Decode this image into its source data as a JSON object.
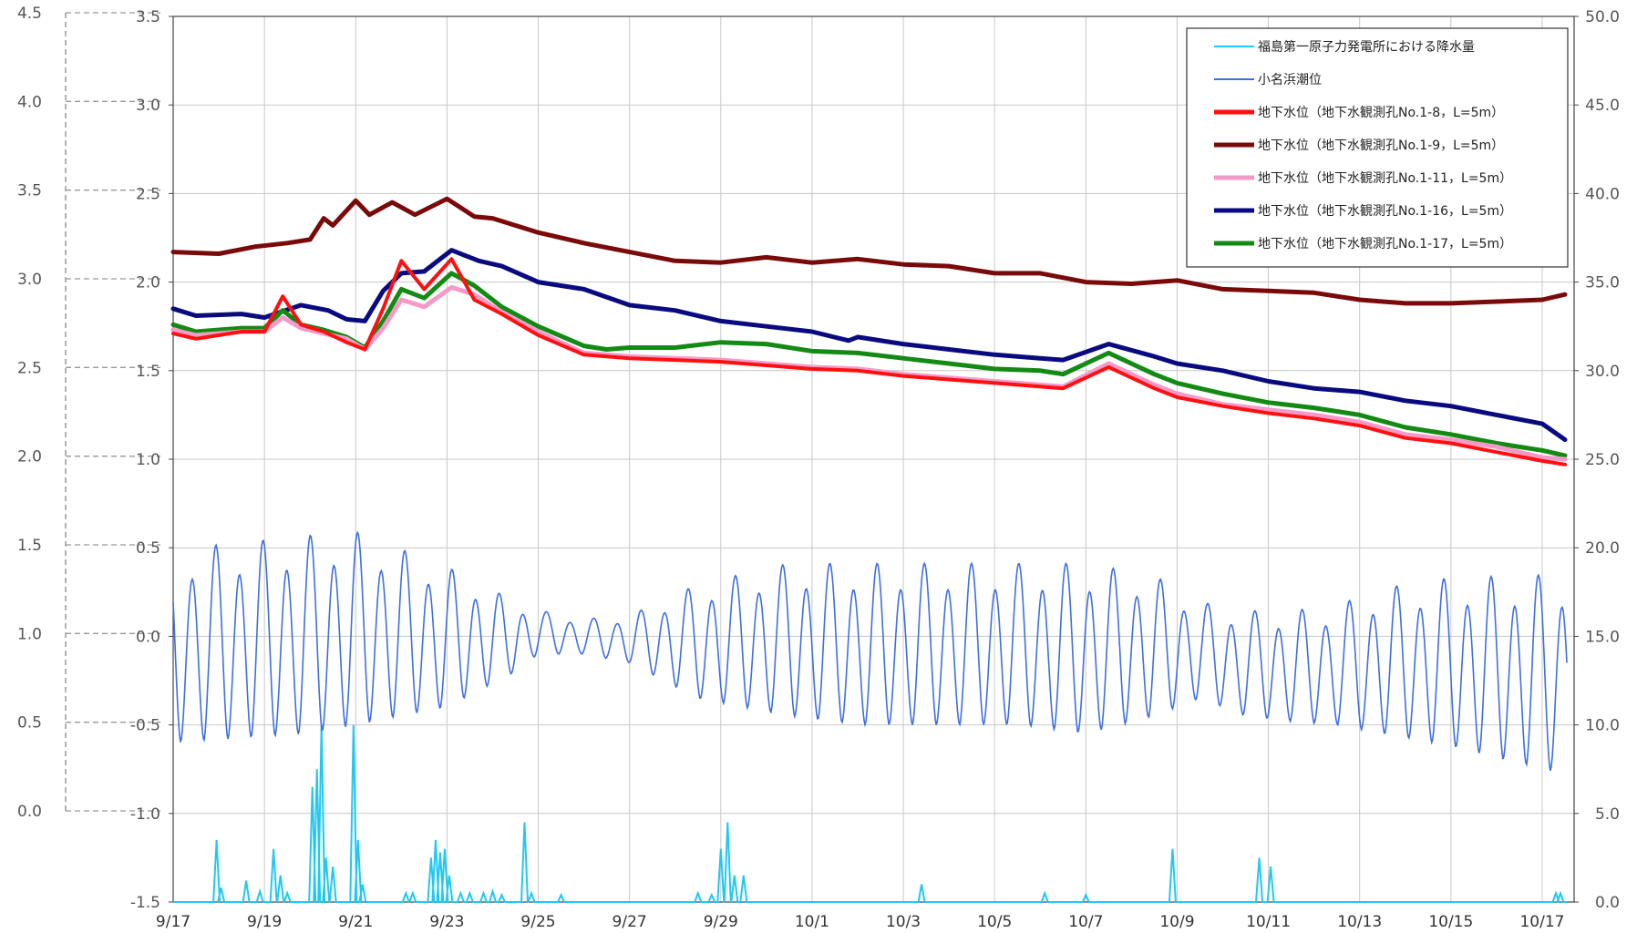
{
  "chart_data": {
    "type": "line",
    "x_axis": {
      "ticks": [
        "9/17",
        "9/19",
        "9/21",
        "9/23",
        "9/25",
        "9/27",
        "9/29",
        "10/1",
        "10/3",
        "10/5",
        "10/7",
        "10/9",
        "10/11",
        "10/13",
        "10/15",
        "10/17"
      ],
      "range_days": [
        0,
        30.7
      ]
    },
    "y_axis_outer_left": {
      "ticks": [
        "4.5",
        "4.0",
        "3.5",
        "3.0",
        "2.5",
        "2.0",
        "1.5",
        "1.0",
        "0.5",
        "0.0"
      ],
      "range": [
        0.0,
        4.5
      ]
    },
    "y_axis_inner_left": {
      "ticks": [
        "3.5",
        "3.0",
        "2.5",
        "2.0",
        "1.5",
        "1.0",
        "0.5",
        "0.0",
        "-0.5",
        "-1.0",
        "-1.5"
      ],
      "range": [
        -1.5,
        3.5
      ]
    },
    "y_axis_right": {
      "ticks": [
        "50.0",
        "45.0",
        "40.0",
        "35.0",
        "30.0",
        "25.0",
        "20.0",
        "15.0",
        "10.0",
        "5.0",
        "0.0"
      ],
      "range": [
        0.0,
        50.0
      ]
    },
    "grid": true,
    "legend_position": "top-right",
    "legend": [
      {
        "label": "福島第一原子力発電所における降水量",
        "color": "#22c8f0"
      },
      {
        "label": "小名浜潮位",
        "color": "#3e6fe0"
      },
      {
        "label": "地下水位（地下水観測孔No.1-8，L=5m）",
        "color": "#ff1010"
      },
      {
        "label": "地下水位（地下水観測孔No.1-9，L=5m）",
        "color": "#7a0a0a"
      },
      {
        "label": "地下水位（地下水観測孔No.1-11，L=5m）",
        "color": "#f59ac8"
      },
      {
        "label": "地下水位（地下水観測孔No.1-16，L=5m）",
        "color": "#0a0a80"
      },
      {
        "label": "地下水位（地下水観測孔No.1-17，L=5m）",
        "color": "#138a13"
      }
    ],
    "series": [
      {
        "key": "w9",
        "color": "#7a0a0a",
        "width": 5,
        "axis": "inner_left",
        "points": [
          [
            0,
            2.17
          ],
          [
            1,
            2.16
          ],
          [
            1.8,
            2.2
          ],
          [
            2.5,
            2.22
          ],
          [
            3,
            2.24
          ],
          [
            3.3,
            2.36
          ],
          [
            3.5,
            2.32
          ],
          [
            4,
            2.46
          ],
          [
            4.3,
            2.38
          ],
          [
            4.8,
            2.45
          ],
          [
            5.3,
            2.38
          ],
          [
            6,
            2.47
          ],
          [
            6.6,
            2.37
          ],
          [
            7,
            2.36
          ],
          [
            8,
            2.28
          ],
          [
            9,
            2.22
          ],
          [
            10,
            2.17
          ],
          [
            11,
            2.12
          ],
          [
            12,
            2.11
          ],
          [
            13,
            2.14
          ],
          [
            14,
            2.11
          ],
          [
            15,
            2.13
          ],
          [
            16,
            2.1
          ],
          [
            17,
            2.09
          ],
          [
            18,
            2.05
          ],
          [
            19,
            2.05
          ],
          [
            20,
            2.0
          ],
          [
            21,
            1.99
          ],
          [
            22,
            2.01
          ],
          [
            23,
            1.96
          ],
          [
            24,
            1.95
          ],
          [
            25,
            1.94
          ],
          [
            26,
            1.9
          ],
          [
            27,
            1.88
          ],
          [
            28,
            1.88
          ],
          [
            29,
            1.89
          ],
          [
            30,
            1.9
          ],
          [
            30.5,
            1.93
          ]
        ]
      },
      {
        "key": "w16",
        "color": "#0a0a80",
        "width": 5,
        "axis": "inner_left",
        "points": [
          [
            0,
            1.85
          ],
          [
            0.5,
            1.81
          ],
          [
            1.5,
            1.82
          ],
          [
            2,
            1.8
          ],
          [
            2.8,
            1.87
          ],
          [
            3.4,
            1.84
          ],
          [
            3.8,
            1.79
          ],
          [
            4.2,
            1.78
          ],
          [
            4.6,
            1.95
          ],
          [
            5,
            2.05
          ],
          [
            5.5,
            2.06
          ],
          [
            6.1,
            2.18
          ],
          [
            6.7,
            2.12
          ],
          [
            7.2,
            2.09
          ],
          [
            8,
            2.0
          ],
          [
            9,
            1.96
          ],
          [
            10,
            1.87
          ],
          [
            11,
            1.84
          ],
          [
            12,
            1.78
          ],
          [
            13,
            1.75
          ],
          [
            14,
            1.72
          ],
          [
            14.8,
            1.67
          ],
          [
            15,
            1.69
          ],
          [
            16,
            1.65
          ],
          [
            17,
            1.62
          ],
          [
            18,
            1.59
          ],
          [
            19,
            1.57
          ],
          [
            19.5,
            1.56
          ],
          [
            20.5,
            1.65
          ],
          [
            21.5,
            1.58
          ],
          [
            22,
            1.54
          ],
          [
            23,
            1.5
          ],
          [
            24,
            1.44
          ],
          [
            25,
            1.4
          ],
          [
            26,
            1.38
          ],
          [
            27,
            1.33
          ],
          [
            28,
            1.3
          ],
          [
            29,
            1.25
          ],
          [
            30,
            1.2
          ],
          [
            30.5,
            1.11
          ]
        ]
      },
      {
        "key": "w17",
        "color": "#138a13",
        "width": 5,
        "axis": "inner_left",
        "points": [
          [
            0,
            1.76
          ],
          [
            0.5,
            1.72
          ],
          [
            1.5,
            1.74
          ],
          [
            2,
            1.74
          ],
          [
            2.4,
            1.84
          ],
          [
            2.8,
            1.76
          ],
          [
            3.3,
            1.73
          ],
          [
            3.8,
            1.69
          ],
          [
            4.2,
            1.63
          ],
          [
            4.6,
            1.78
          ],
          [
            5,
            1.96
          ],
          [
            5.5,
            1.91
          ],
          [
            6.1,
            2.05
          ],
          [
            6.6,
            1.98
          ],
          [
            7.2,
            1.86
          ],
          [
            8,
            1.75
          ],
          [
            9,
            1.64
          ],
          [
            9.5,
            1.62
          ],
          [
            10,
            1.63
          ],
          [
            11,
            1.63
          ],
          [
            12,
            1.66
          ],
          [
            13,
            1.65
          ],
          [
            14,
            1.61
          ],
          [
            15,
            1.6
          ],
          [
            16,
            1.57
          ],
          [
            17,
            1.54
          ],
          [
            18,
            1.51
          ],
          [
            19,
            1.5
          ],
          [
            19.5,
            1.48
          ],
          [
            20.5,
            1.6
          ],
          [
            21.5,
            1.48
          ],
          [
            22,
            1.43
          ],
          [
            23,
            1.37
          ],
          [
            24,
            1.32
          ],
          [
            25,
            1.29
          ],
          [
            26,
            1.25
          ],
          [
            27,
            1.18
          ],
          [
            28,
            1.14
          ],
          [
            29,
            1.09
          ],
          [
            30,
            1.05
          ],
          [
            30.5,
            1.02
          ]
        ]
      },
      {
        "key": "w11",
        "color": "#f59ac8",
        "width": 5,
        "axis": "inner_left",
        "points": [
          [
            0,
            1.73
          ],
          [
            0.5,
            1.7
          ],
          [
            1.5,
            1.72
          ],
          [
            2,
            1.72
          ],
          [
            2.4,
            1.8
          ],
          [
            2.8,
            1.74
          ],
          [
            3.3,
            1.71
          ],
          [
            3.8,
            1.68
          ],
          [
            4.2,
            1.62
          ],
          [
            4.6,
            1.74
          ],
          [
            5,
            1.9
          ],
          [
            5.5,
            1.86
          ],
          [
            6.1,
            1.97
          ],
          [
            6.6,
            1.93
          ],
          [
            7.2,
            1.83
          ],
          [
            8,
            1.72
          ],
          [
            9,
            1.6
          ],
          [
            10,
            1.58
          ],
          [
            11,
            1.57
          ],
          [
            12,
            1.56
          ],
          [
            13,
            1.54
          ],
          [
            14,
            1.52
          ],
          [
            15,
            1.51
          ],
          [
            16,
            1.48
          ],
          [
            17,
            1.46
          ],
          [
            18,
            1.44
          ],
          [
            19,
            1.42
          ],
          [
            19.5,
            1.41
          ],
          [
            20.5,
            1.54
          ],
          [
            21.5,
            1.42
          ],
          [
            22,
            1.37
          ],
          [
            23,
            1.31
          ],
          [
            24,
            1.28
          ],
          [
            25,
            1.25
          ],
          [
            26,
            1.21
          ],
          [
            27,
            1.14
          ],
          [
            28,
            1.11
          ],
          [
            29,
            1.07
          ],
          [
            30,
            1.01
          ],
          [
            30.5,
            1.0
          ]
        ]
      },
      {
        "key": "w8",
        "color": "#ff1010",
        "width": 4,
        "axis": "inner_left",
        "points": [
          [
            0,
            1.71
          ],
          [
            0.5,
            1.68
          ],
          [
            1.5,
            1.72
          ],
          [
            2,
            1.72
          ],
          [
            2.4,
            1.92
          ],
          [
            2.8,
            1.76
          ],
          [
            3.3,
            1.72
          ],
          [
            3.8,
            1.66
          ],
          [
            4.2,
            1.62
          ],
          [
            4.6,
            1.85
          ],
          [
            5,
            2.12
          ],
          [
            5.5,
            1.96
          ],
          [
            6.1,
            2.13
          ],
          [
            6.6,
            1.9
          ],
          [
            7.2,
            1.82
          ],
          [
            8,
            1.7
          ],
          [
            9,
            1.59
          ],
          [
            10,
            1.57
          ],
          [
            11,
            1.56
          ],
          [
            12,
            1.55
          ],
          [
            13,
            1.53
          ],
          [
            14,
            1.51
          ],
          [
            15,
            1.5
          ],
          [
            16,
            1.47
          ],
          [
            17,
            1.45
          ],
          [
            18,
            1.43
          ],
          [
            19,
            1.41
          ],
          [
            19.5,
            1.4
          ],
          [
            20.5,
            1.52
          ],
          [
            21.5,
            1.4
          ],
          [
            22,
            1.35
          ],
          [
            23,
            1.3
          ],
          [
            24,
            1.26
          ],
          [
            25,
            1.23
          ],
          [
            26,
            1.19
          ],
          [
            27,
            1.12
          ],
          [
            28,
            1.09
          ],
          [
            29,
            1.04
          ],
          [
            30,
            0.99
          ],
          [
            30.5,
            0.97
          ]
        ]
      }
    ],
    "tide": {
      "color": "#3e6fe0",
      "axis": "inner_left",
      "start_day": 0,
      "end_day": 30.55,
      "period_days": 1.035,
      "mean_high": [
        [
          0,
          0.5
        ],
        [
          3,
          0.58
        ],
        [
          4,
          0.6
        ],
        [
          6,
          0.4
        ],
        [
          7.5,
          0.2
        ],
        [
          8,
          0.15
        ],
        [
          9,
          0.1
        ],
        [
          10,
          0.12
        ],
        [
          11.5,
          0.3
        ],
        [
          13.5,
          0.42
        ],
        [
          15,
          0.42
        ],
        [
          17,
          0.42
        ],
        [
          18.5,
          0.42
        ],
        [
          20,
          0.42
        ],
        [
          21.5,
          0.35
        ],
        [
          22.5,
          0.2
        ],
        [
          23.5,
          0.15
        ],
        [
          24.5,
          0.15
        ],
        [
          25.5,
          0.18
        ],
        [
          26.5,
          0.28
        ],
        [
          28,
          0.34
        ],
        [
          30.5,
          0.36
        ]
      ],
      "mean_low": [
        [
          0,
          -0.6
        ],
        [
          3,
          -0.55
        ],
        [
          4,
          -0.5
        ],
        [
          6,
          -0.4
        ],
        [
          7.5,
          -0.2
        ],
        [
          8,
          -0.1
        ],
        [
          9,
          -0.1
        ],
        [
          10,
          -0.15
        ],
        [
          11.5,
          -0.35
        ],
        [
          13.5,
          -0.45
        ],
        [
          15,
          -0.5
        ],
        [
          17,
          -0.5
        ],
        [
          18.5,
          -0.5
        ],
        [
          20,
          -0.55
        ],
        [
          21.5,
          -0.45
        ],
        [
          22.5,
          -0.35
        ],
        [
          23.5,
          -0.45
        ],
        [
          24.5,
          -0.48
        ],
        [
          25.5,
          -0.5
        ],
        [
          26.5,
          -0.55
        ],
        [
          28,
          -0.62
        ],
        [
          30.5,
          -0.78
        ]
      ]
    },
    "rain": {
      "color": "#22c8f0",
      "axis": "right",
      "spikes": [
        [
          0.95,
          3.5
        ],
        [
          1.05,
          0.8
        ],
        [
          1.6,
          1.2
        ],
        [
          1.9,
          0.6
        ],
        [
          2.2,
          3.0
        ],
        [
          2.35,
          1.5
        ],
        [
          2.5,
          0.5
        ],
        [
          3.05,
          6.5
        ],
        [
          3.15,
          7.5
        ],
        [
          3.25,
          10.0
        ],
        [
          3.35,
          2.5
        ],
        [
          3.5,
          2.0
        ],
        [
          3.95,
          10.0
        ],
        [
          4.05,
          3.5
        ],
        [
          4.15,
          1.0
        ],
        [
          5.1,
          0.5
        ],
        [
          5.25,
          0.5
        ],
        [
          5.65,
          2.5
        ],
        [
          5.75,
          3.5
        ],
        [
          5.85,
          2.8
        ],
        [
          5.95,
          3.0
        ],
        [
          6.05,
          1.5
        ],
        [
          6.3,
          0.5
        ],
        [
          6.5,
          0.5
        ],
        [
          6.8,
          0.5
        ],
        [
          7.0,
          0.6
        ],
        [
          7.2,
          0.4
        ],
        [
          7.7,
          4.5
        ],
        [
          7.85,
          0.5
        ],
        [
          8.5,
          0.4
        ],
        [
          11.5,
          0.5
        ],
        [
          11.8,
          0.4
        ],
        [
          12.0,
          3.0
        ],
        [
          12.15,
          4.5
        ],
        [
          12.3,
          1.5
        ],
        [
          12.5,
          1.5
        ],
        [
          16.4,
          1.0
        ],
        [
          19.1,
          0.5
        ],
        [
          20.0,
          0.4
        ],
        [
          21.9,
          3.0
        ],
        [
          23.8,
          2.5
        ],
        [
          24.05,
          2.0
        ],
        [
          30.3,
          0.5
        ],
        [
          30.4,
          0.5
        ]
      ]
    }
  }
}
